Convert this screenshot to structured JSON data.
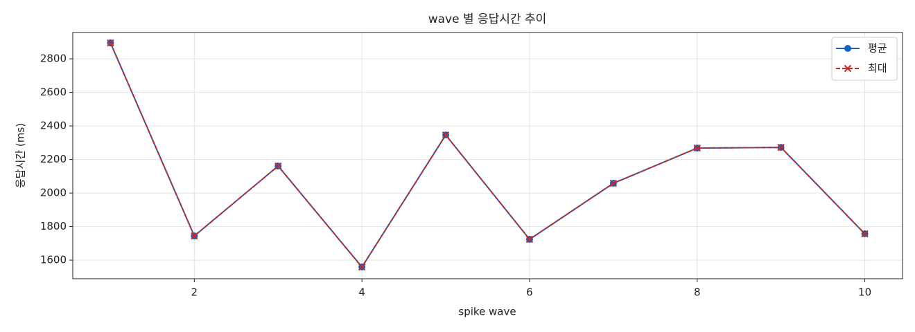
{
  "chart_data": {
    "type": "line",
    "title": "wave 별 응답시간 추이",
    "x_label": "spike wave",
    "y_label": "응답시간 (ms)",
    "x": [
      1,
      2,
      3,
      4,
      5,
      6,
      7,
      8,
      9,
      10
    ],
    "series": [
      {
        "name": "평균",
        "color": "#1565c0",
        "marker": "o",
        "linestyle": "solid",
        "values": [
          2895,
          1744,
          2161,
          1559,
          2346,
          1724,
          2058,
          2268,
          2272,
          1757
        ]
      },
      {
        "name": "최대",
        "color": "#c62828",
        "marker": "x",
        "linestyle": "dashed",
        "values": [
          2895,
          1744,
          2161,
          1559,
          2346,
          1724,
          2058,
          2268,
          2272,
          1757
        ]
      }
    ],
    "xlim": [
      0.55,
      10.45
    ],
    "ylim": [
      1489,
      2957
    ],
    "xticks": [
      2,
      4,
      6,
      8,
      10
    ],
    "yticks": [
      1600,
      1800,
      2000,
      2200,
      2400,
      2600,
      2800
    ],
    "grid": true,
    "legend": "upper right"
  }
}
